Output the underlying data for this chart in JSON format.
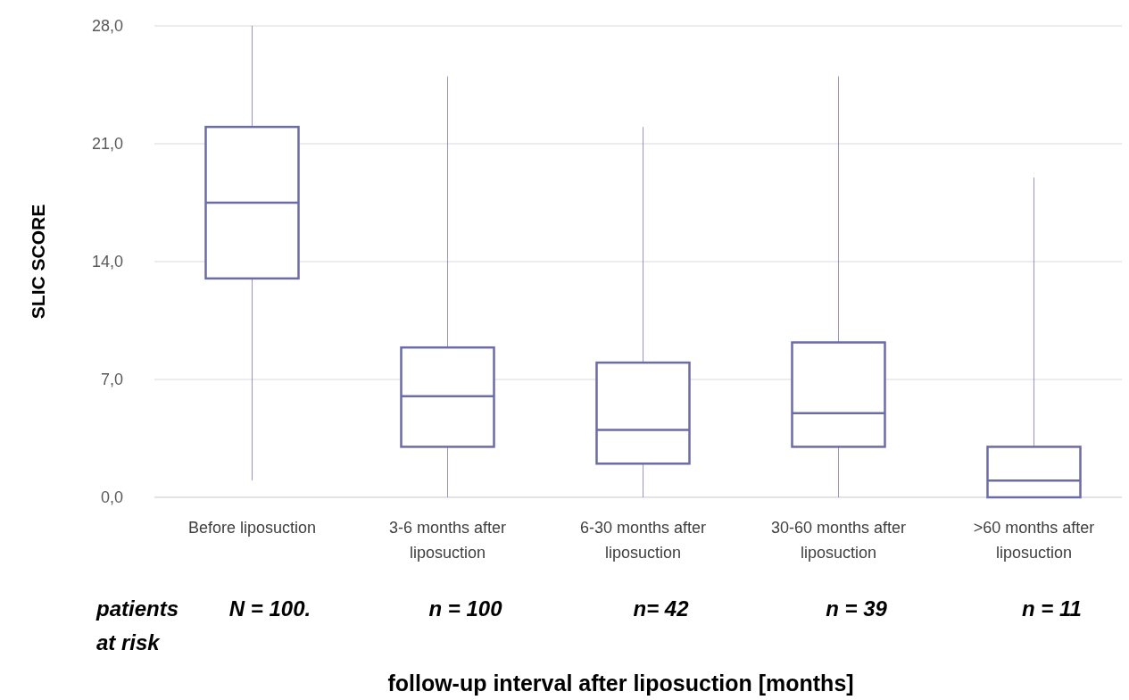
{
  "chart_data": {
    "type": "box",
    "xlabel": "follow-up interval after liposuction [months]",
    "ylabel": "SLIC SCORE",
    "categories": [
      "Before liposuction",
      "3-6 months after liposuction",
      "6-30 months after liposuction",
      "30-60 months after liposuction",
      ">60 months after liposuction"
    ],
    "boxes": [
      {
        "low": 1,
        "q1": 13,
        "median": 17.5,
        "q3": 22,
        "high": 28
      },
      {
        "low": 0,
        "q1": 3,
        "median": 6,
        "q3": 8.9,
        "high": 25
      },
      {
        "low": 0,
        "q1": 2,
        "median": 4,
        "q3": 8,
        "high": 22
      },
      {
        "low": 0,
        "q1": 3,
        "median": 5,
        "q3": 9.2,
        "high": 25
      },
      {
        "low": 0,
        "q1": 0,
        "median": 1,
        "q3": 3,
        "high": 19
      }
    ],
    "color": "#6b6ba8",
    "ylim": [
      0,
      28
    ],
    "yticks": [
      {
        "value": 0,
        "label": "0,0"
      },
      {
        "value": 7,
        "label": "7,0"
      },
      {
        "value": 14,
        "label": "14,0"
      },
      {
        "value": 21,
        "label": "21,0"
      },
      {
        "value": 28,
        "label": "28,0"
      }
    ],
    "grid": "y",
    "annotations": [
      "patients at risk",
      "N = 100.",
      "n = 100",
      "n= 42",
      "n = 39",
      "n = 11"
    ]
  }
}
